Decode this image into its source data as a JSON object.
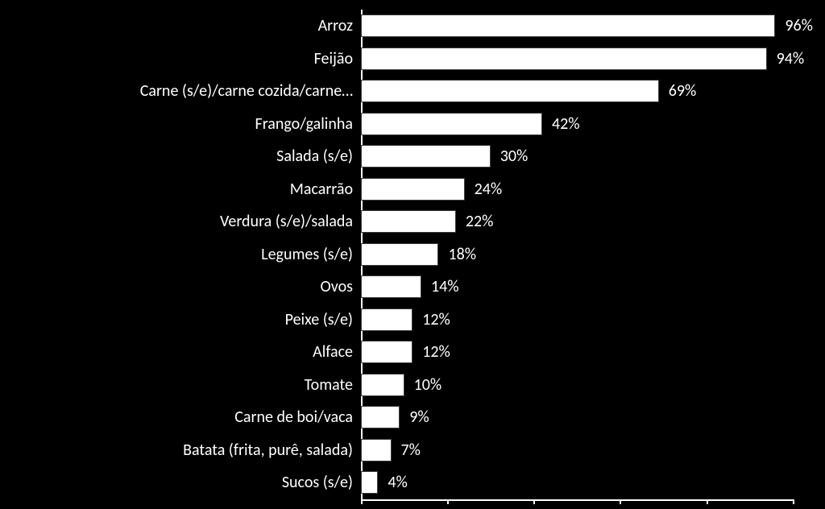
{
  "chart": {
    "type": "bar-horizontal",
    "background_color": "#000000",
    "bar_fill": "#ffffff",
    "bar_border": "#3b3b3b",
    "bar_border_width": 1,
    "label_color": "#ffffff",
    "label_fontsize": 20,
    "value_label_color": "#ffffff",
    "value_label_fontsize": 20,
    "axis_color": "#ffffff",
    "axis_width": 2,
    "x_max": 100,
    "tick_step": 20,
    "tick_length": 6,
    "category_col_width": 448,
    "row_height": 40.5,
    "bar_height_pct": 68,
    "value_suffix": "%",
    "categories": [
      "Arroz",
      "Feijão",
      "Carne (s/e)/carne cozida/carne…",
      "Frango/galinha",
      "Salada (s/e)",
      "Macarrão",
      "Verdura (s/e)/salada",
      "Legumes (s/e)",
      "Ovos",
      "Peixe (s/e)",
      "Alface",
      "Tomate",
      "Carne de boi/vaca",
      "Batata (frita, purê, salada)",
      "Sucos (s/e)"
    ],
    "values": [
      96,
      94,
      69,
      42,
      30,
      24,
      22,
      18,
      14,
      12,
      12,
      10,
      9,
      7,
      4
    ]
  }
}
